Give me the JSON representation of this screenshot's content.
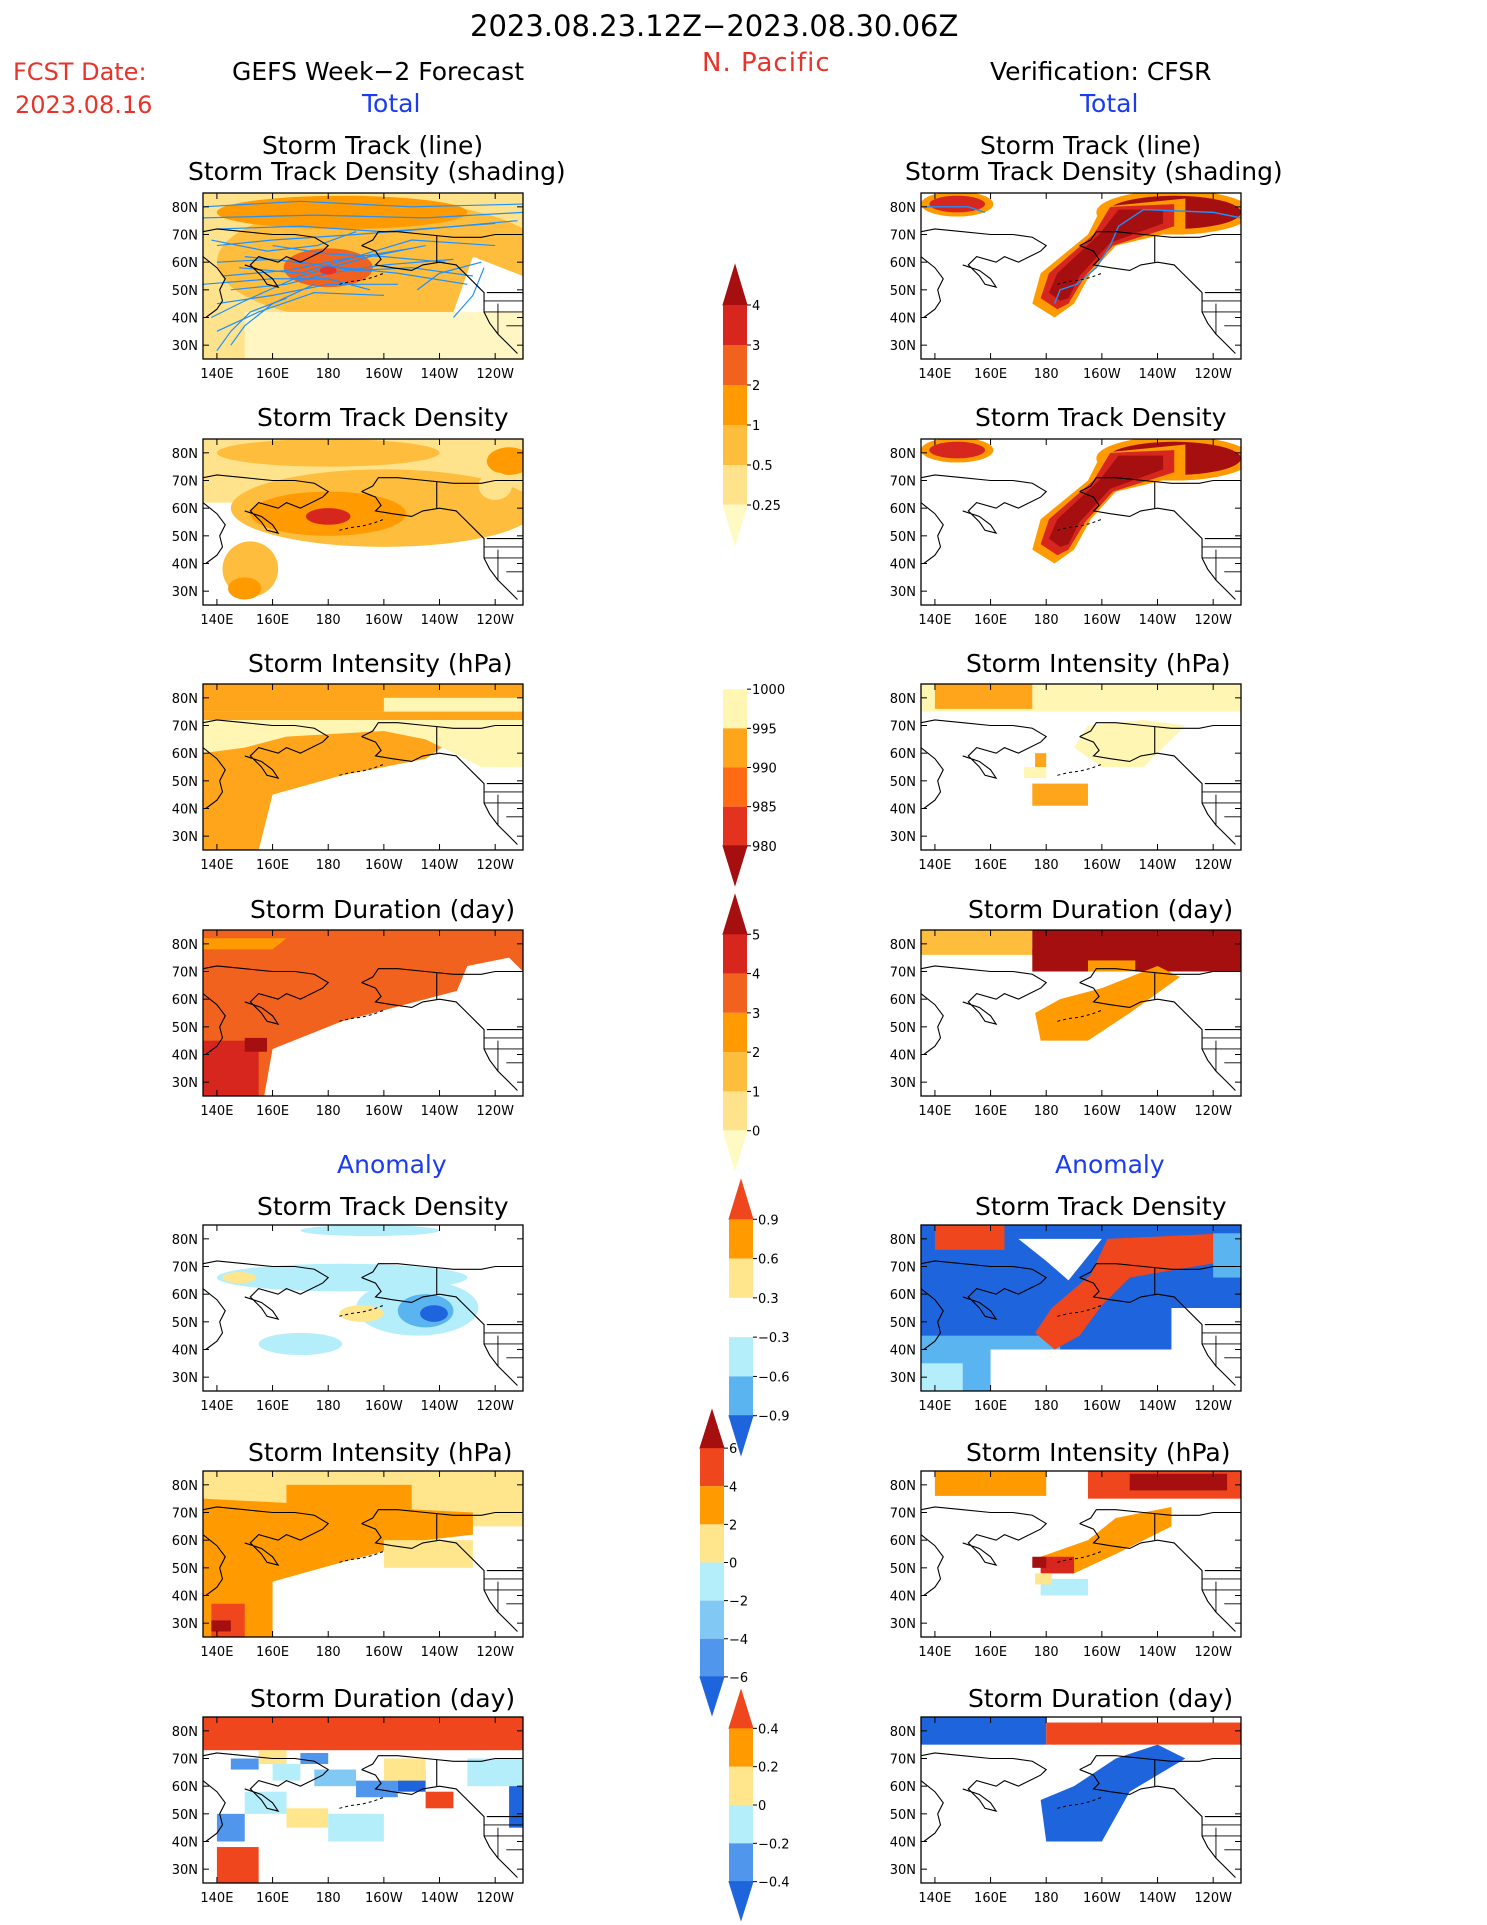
{
  "header": {
    "date_range": "2023.08.23.12Z−2023.08.30.06Z",
    "region": "N. Pacific",
    "fcst_label": "FCST Date:",
    "fcst_date": "2023.08.16",
    "left_title": "GEFS Week−2 Forecast",
    "right_title": "Verification: CFSR",
    "section_total": "Total",
    "section_anomaly": "Anomaly"
  },
  "colors": {
    "title_red": "#e8332a",
    "title_blue": "#1a3cf0",
    "track_line": "#1e90ff",
    "land_outline": "#000000"
  },
  "panel_titles": {
    "track_line": "Storm Track (line)",
    "track_shading": "Storm Track Density (shading)",
    "density": "Storm Track Density",
    "intensity": "Storm Intensity (hPa)",
    "duration": "Storm Duration (day)"
  },
  "chart_data": [
    {
      "type": "heatmap",
      "id": "map-axes",
      "x_ticks": [
        "140E",
        "160E",
        "180",
        "160W",
        "140W",
        "120W"
      ],
      "y_ticks": [
        "30N",
        "40N",
        "50N",
        "60N",
        "70N",
        "80N"
      ],
      "xlim": [
        135,
        250
      ],
      "ylim": [
        25,
        85
      ]
    },
    {
      "type": "heatmap",
      "id": "colorbar-density-total",
      "levels": [
        "0.25",
        "0.5",
        "1",
        "2",
        "3",
        "4"
      ],
      "colors": [
        "#fffac4",
        "#ffe38c",
        "#ffbd3d",
        "#ff9a00",
        "#f0621e",
        "#d7261e",
        "#a50f0f"
      ]
    },
    {
      "type": "heatmap",
      "id": "colorbar-intensity-total",
      "levels": [
        "1000",
        "995",
        "990",
        "985",
        "980"
      ],
      "colors": [
        "#ffffff",
        "#fff6b4",
        "#ffa51c",
        "#ff6a12",
        "#e3321e",
        "#a50f0f"
      ]
    },
    {
      "type": "heatmap",
      "id": "colorbar-duration-total",
      "levels": [
        "0",
        "1",
        "2",
        "3",
        "4",
        "5"
      ],
      "colors": [
        "#fffac4",
        "#ffe38c",
        "#ffbd3d",
        "#ff9a00",
        "#f0621e",
        "#d7261e",
        "#a50f0f"
      ]
    },
    {
      "type": "heatmap",
      "id": "colorbar-density-anom",
      "levels": [
        "0.9",
        "0.6",
        "0.3",
        "−0.3",
        "−0.6",
        "−0.9"
      ],
      "colors": [
        "#f0461e",
        "#ff9a00",
        "#ffe68c",
        "#ffffff",
        "#b4eefa",
        "#5ab4f0",
        "#1e64dc"
      ]
    },
    {
      "type": "heatmap",
      "id": "colorbar-intensity-anom",
      "levels": [
        "6",
        "4",
        "2",
        "0",
        "−2",
        "−4",
        "−6"
      ],
      "colors": [
        "#a50f0f",
        "#f0461e",
        "#ff9a00",
        "#ffe68c",
        "#b4eefa",
        "#82c8f5",
        "#5096ec",
        "#1e64dc"
      ]
    },
    {
      "type": "heatmap",
      "id": "colorbar-duration-anom",
      "levels": [
        "0.4",
        "0.2",
        "0",
        "−0.2",
        "−0.4"
      ],
      "colors": [
        "#f0461e",
        "#ff9a00",
        "#ffe68c",
        "#b4eefa",
        "#5096ec",
        "#1e64dc"
      ]
    }
  ]
}
